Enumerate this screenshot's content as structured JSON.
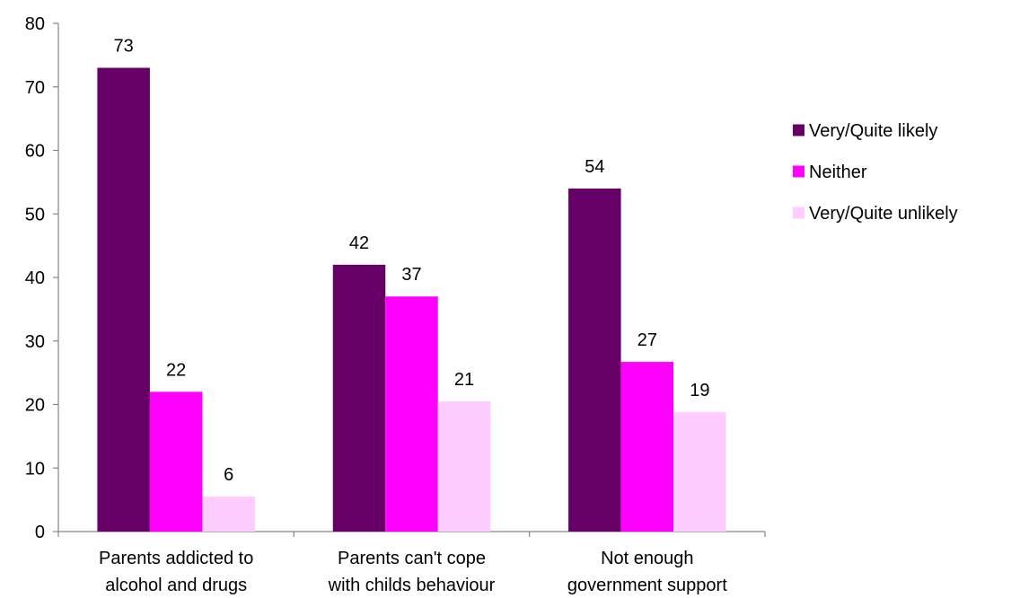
{
  "chart_data": {
    "type": "bar",
    "categories": [
      [
        "Parents addicted to",
        "alcohol and drugs"
      ],
      [
        "Parents can't cope",
        "with childs behaviour"
      ],
      [
        "Not enough",
        "government support"
      ]
    ],
    "series": [
      {
        "name": "Very/Quite likely",
        "color": "#660066",
        "values": [
          73,
          42,
          54
        ],
        "labels": [
          "73",
          "42",
          "54"
        ]
      },
      {
        "name": "Neither",
        "color": "#FF00FF",
        "values": [
          22,
          37,
          26.7
        ],
        "labels": [
          "22",
          "37",
          "27"
        ]
      },
      {
        "name": "Very/Quite unlikely",
        "color": "#FFCCFF",
        "values": [
          5.5,
          20.5,
          18.8
        ],
        "labels": [
          "6",
          "21",
          "19"
        ]
      }
    ],
    "ylim": [
      0,
      80
    ],
    "yticks": [
      0,
      10,
      20,
      30,
      40,
      50,
      60,
      70,
      80
    ],
    "grid": false,
    "legend_position": "right"
  }
}
